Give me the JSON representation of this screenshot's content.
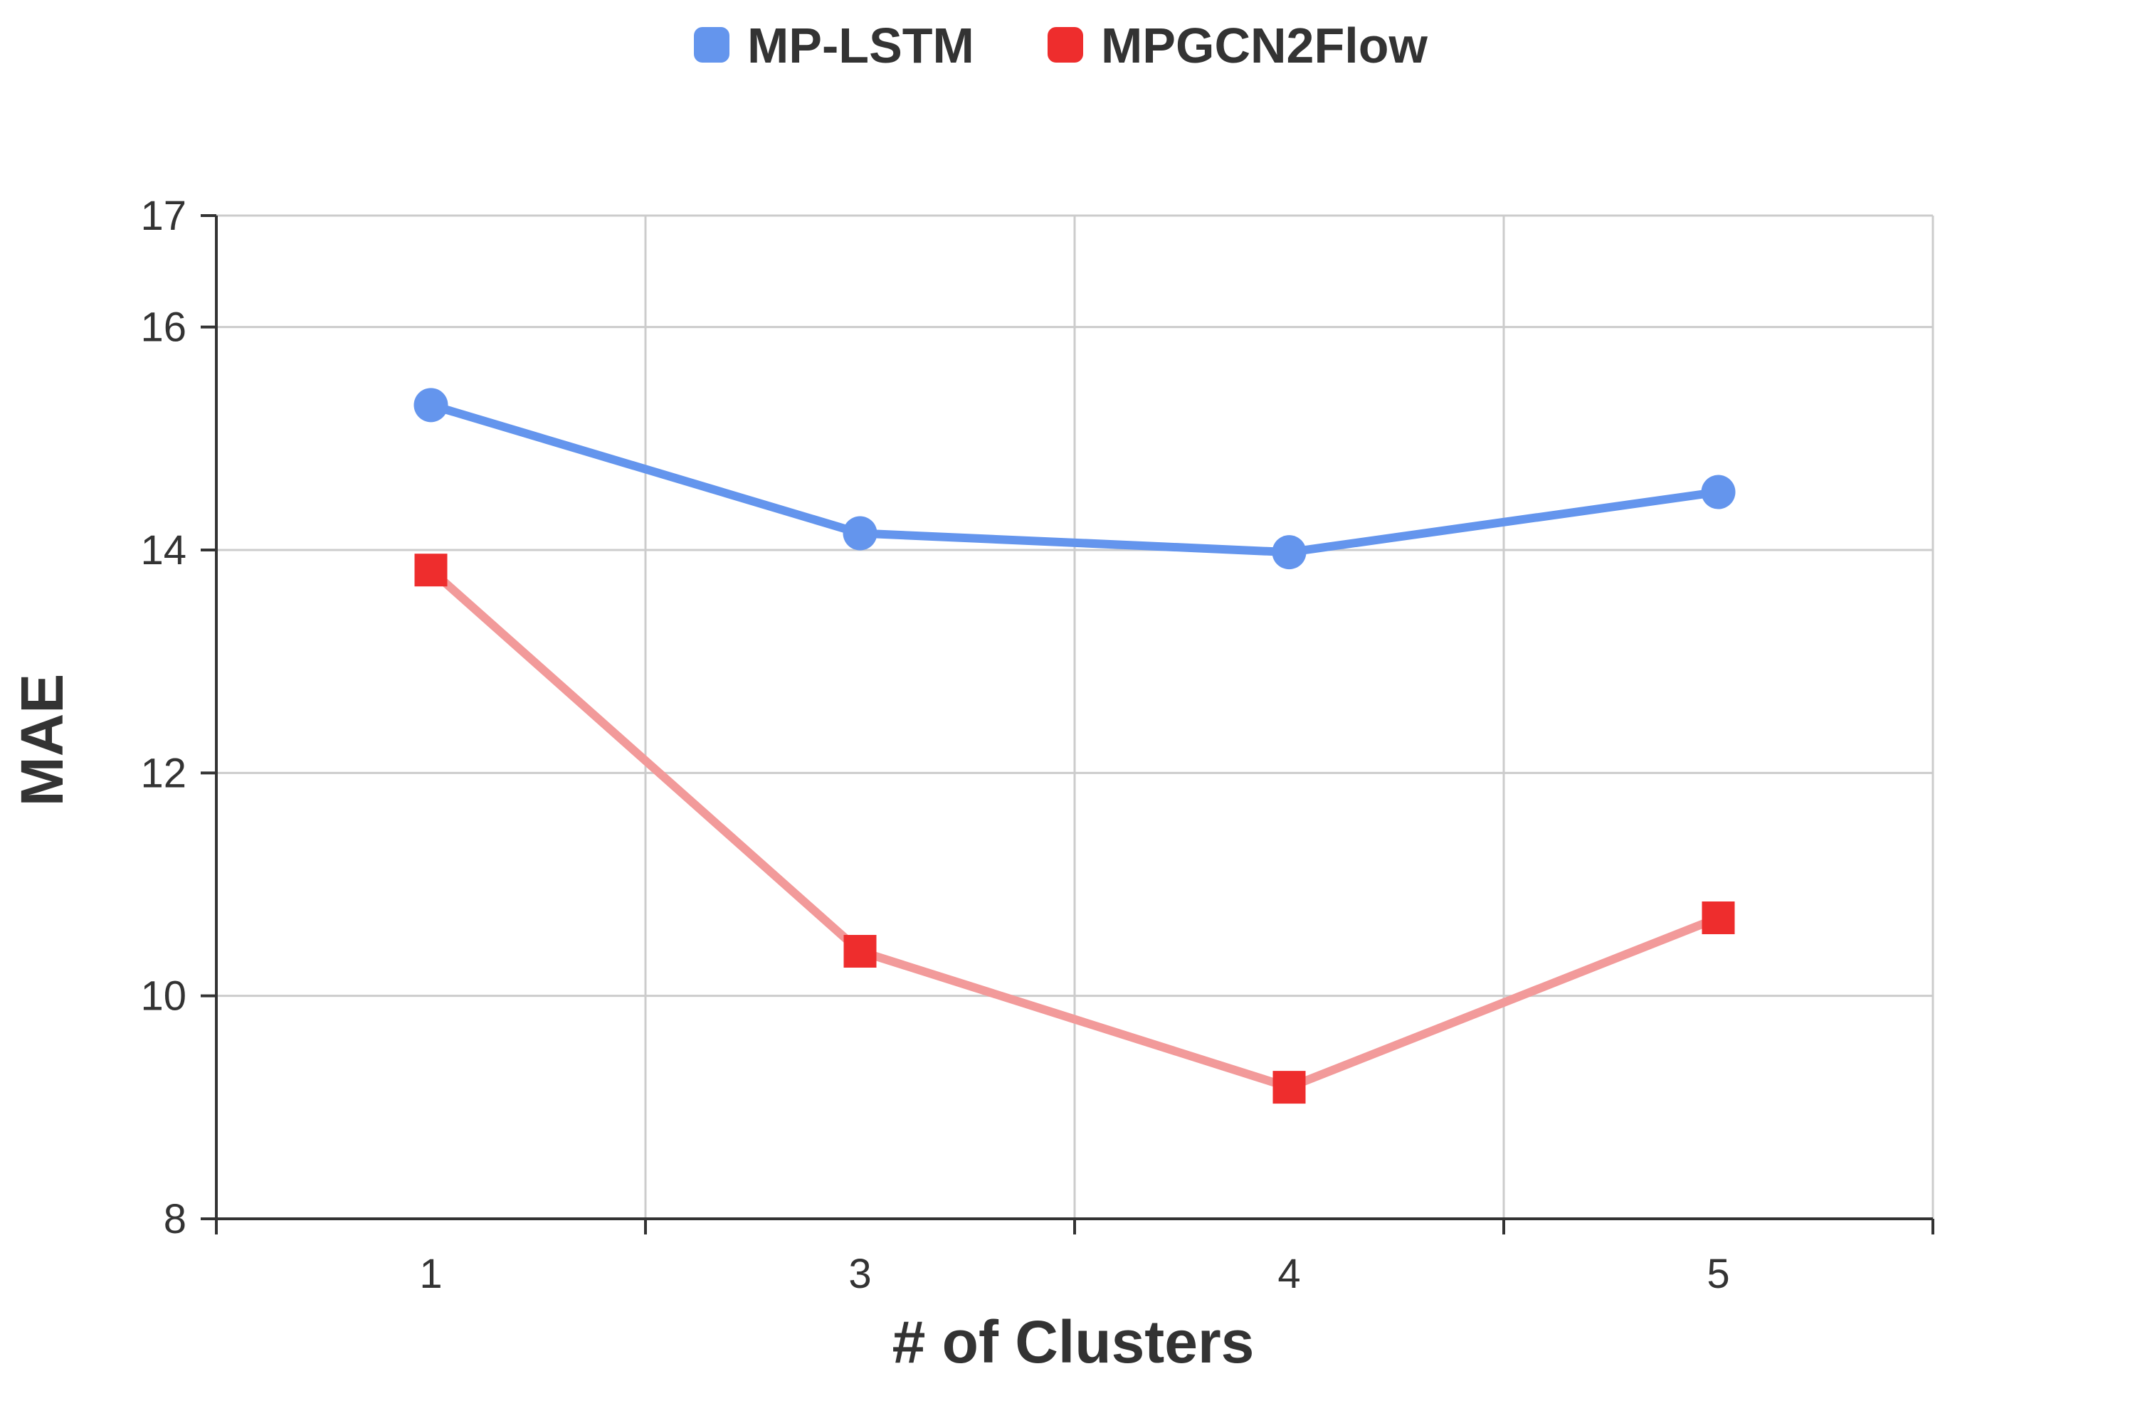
{
  "chart_data": {
    "type": "line",
    "categories": [
      "1",
      "3",
      "4",
      "5"
    ],
    "series": [
      {
        "name": "MP-LSTM",
        "values": [
          15.3,
          14.15,
          13.98,
          14.52
        ],
        "color": "#6495ed",
        "marker": "circle"
      },
      {
        "name": "MPGCN2Flow",
        "values": [
          13.82,
          10.4,
          9.18,
          10.7
        ],
        "color": "#ee2d2d",
        "line_color": "#f29a9a",
        "marker": "square"
      }
    ],
    "xlabel": "# of Clusters",
    "ylabel": "MAE",
    "yticks": [
      "8",
      "10",
      "12",
      "14",
      "16",
      "17"
    ],
    "ylim": [
      8,
      17
    ],
    "grid": true,
    "legend_position": "top-center"
  }
}
